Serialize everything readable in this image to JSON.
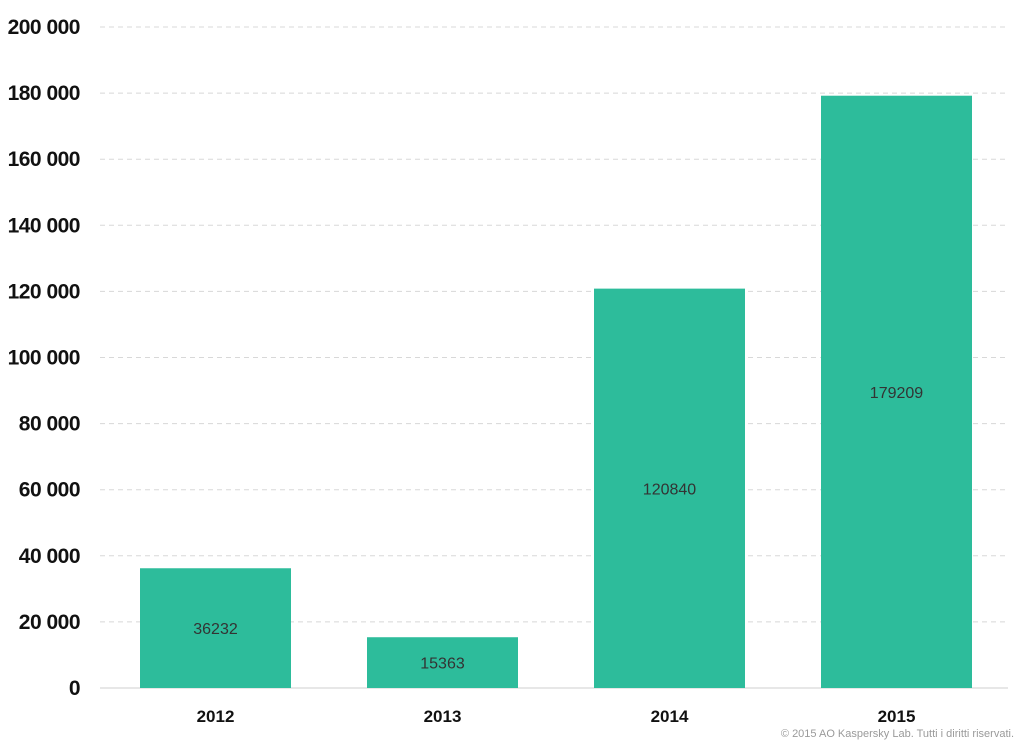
{
  "chart_data": {
    "type": "bar",
    "categories": [
      "2012",
      "2013",
      "2014",
      "2015"
    ],
    "values": [
      36232,
      15363,
      120840,
      179209
    ],
    "data_labels": [
      "36232",
      "15363",
      "120840",
      "179209"
    ],
    "ylim": [
      0,
      200000
    ],
    "y_ticks": [
      0,
      20000,
      40000,
      60000,
      80000,
      100000,
      120000,
      140000,
      160000,
      180000,
      200000
    ],
    "y_tick_labels": [
      "0",
      "20 000",
      "40 000",
      "60 000",
      "80 000",
      "100 000",
      "120 000",
      "140 000",
      "160 000",
      "180 000",
      "200 000"
    ],
    "title": "",
    "xlabel": "",
    "ylabel": "",
    "grid": true,
    "bar_color": "#2dbc9b"
  },
  "footer": {
    "copyright": "© 2015 AO Kaspersky Lab. Tutti i diritti riservati."
  }
}
